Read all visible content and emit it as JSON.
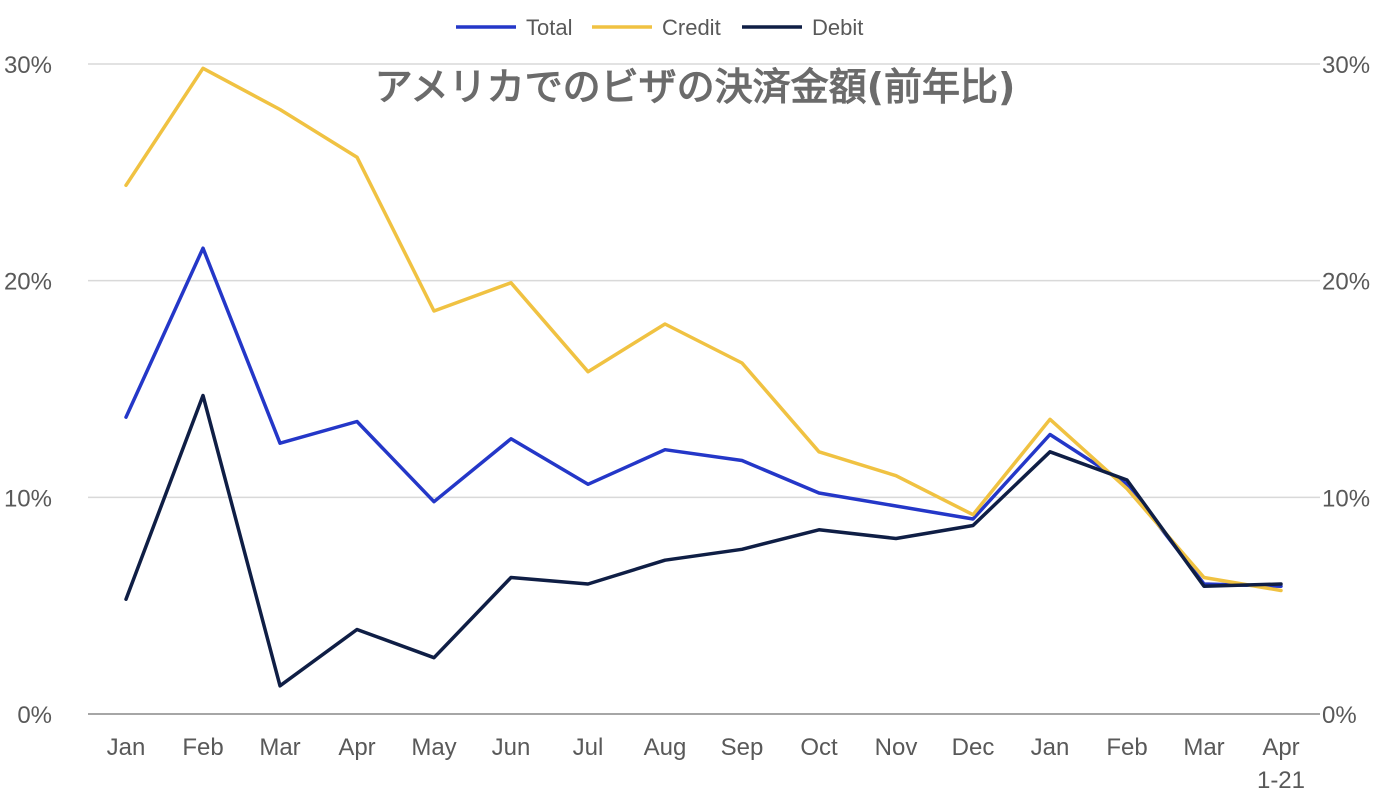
{
  "chart_data": {
    "type": "line",
    "title": "アメリカでのビザの決済金額(前年比)",
    "categories": [
      "Jan",
      "Feb",
      "Mar",
      "Apr",
      "May",
      "Jun",
      "Jul",
      "Aug",
      "Sep",
      "Oct",
      "Nov",
      "Dec",
      "Jan",
      "Feb",
      "Mar",
      "Apr\n1-21"
    ],
    "ylim": [
      0,
      30
    ],
    "yticks": [
      "0%",
      "10%",
      "20%",
      "30%"
    ],
    "ytick_values": [
      0,
      10,
      20,
      30
    ],
    "legend_position": "top-center",
    "grid": true,
    "series": [
      {
        "name": "Total",
        "color": "#2437c8",
        "values": [
          13.7,
          21.5,
          12.5,
          13.5,
          9.8,
          12.7,
          10.6,
          12.2,
          11.7,
          10.2,
          9.6,
          9.0,
          12.9,
          10.6,
          6.0,
          5.9
        ]
      },
      {
        "name": "Credit",
        "color": "#f0c242",
        "values": [
          24.4,
          29.8,
          27.9,
          25.7,
          18.6,
          19.9,
          15.8,
          18.0,
          16.2,
          12.1,
          11.0,
          9.2,
          13.6,
          10.4,
          6.3,
          5.7
        ]
      },
      {
        "name": "Debit",
        "color": "#0f1e45",
        "values": [
          5.3,
          14.7,
          1.3,
          3.9,
          2.6,
          6.3,
          6.0,
          7.1,
          7.6,
          8.5,
          8.1,
          8.7,
          12.1,
          10.8,
          5.9,
          6.0
        ]
      }
    ]
  }
}
